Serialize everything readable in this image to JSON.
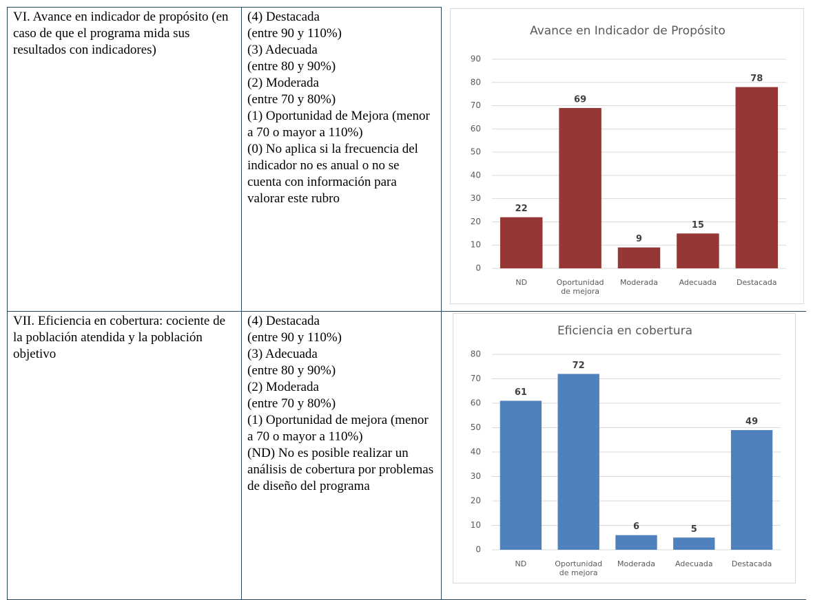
{
  "table": {
    "rows": [
      {
        "criterion": "VI. Avance en indicador de propósito (en caso de que el programa mida sus resultados con indicadores)",
        "levels": [
          "(4) Destacada",
          "(entre 90 y 110%)",
          "(3) Adecuada",
          "(entre 80 y 90%)",
          "(2) Moderada",
          "(entre 70 y 80%)",
          "(1) Oportunidad de Mejora (menor a 70 o mayor a 110%)",
          "(0) No aplica si la frecuencia del indicador no es anual o no se cuenta con información para valorar este rubro"
        ]
      },
      {
        "criterion": "VII. Eficiencia en cobertura: cociente de la población atendida y la población objetivo",
        "levels": [
          "(4) Destacada",
          "(entre 90 y 110%)",
          "(3) Adecuada",
          "(entre 80 y 90%)",
          "(2) Moderada",
          "(entre 70 y 80%)",
          "(1) Oportunidad de mejora (menor a 70 o mayor a 110%)",
          "(ND) No es posible realizar un análisis de cobertura por problemas de diseño del programa"
        ]
      }
    ]
  },
  "chart_data": [
    {
      "type": "bar",
      "title": "Avance en Indicador de Propósito",
      "categories": [
        "ND",
        "Oportunidad de mejora",
        "Moderada",
        "Adecuada",
        "Destacada"
      ],
      "values": [
        22,
        69,
        9,
        15,
        78
      ],
      "color": "#953735",
      "ylim": [
        0,
        90
      ],
      "yticks": [
        0,
        10,
        20,
        30,
        40,
        50,
        60,
        70,
        80,
        90
      ],
      "grid": true
    },
    {
      "type": "bar",
      "title": "Eficiencia en cobertura",
      "categories": [
        "ND",
        "Oportunidad de mejora",
        "Moderada",
        "Adecuada",
        "Destacada"
      ],
      "values": [
        61,
        72,
        6,
        5,
        49
      ],
      "color": "#4f81bd",
      "ylim": [
        0,
        80
      ],
      "yticks": [
        0,
        10,
        20,
        30,
        40,
        50,
        60,
        70,
        80
      ],
      "grid": true
    }
  ]
}
